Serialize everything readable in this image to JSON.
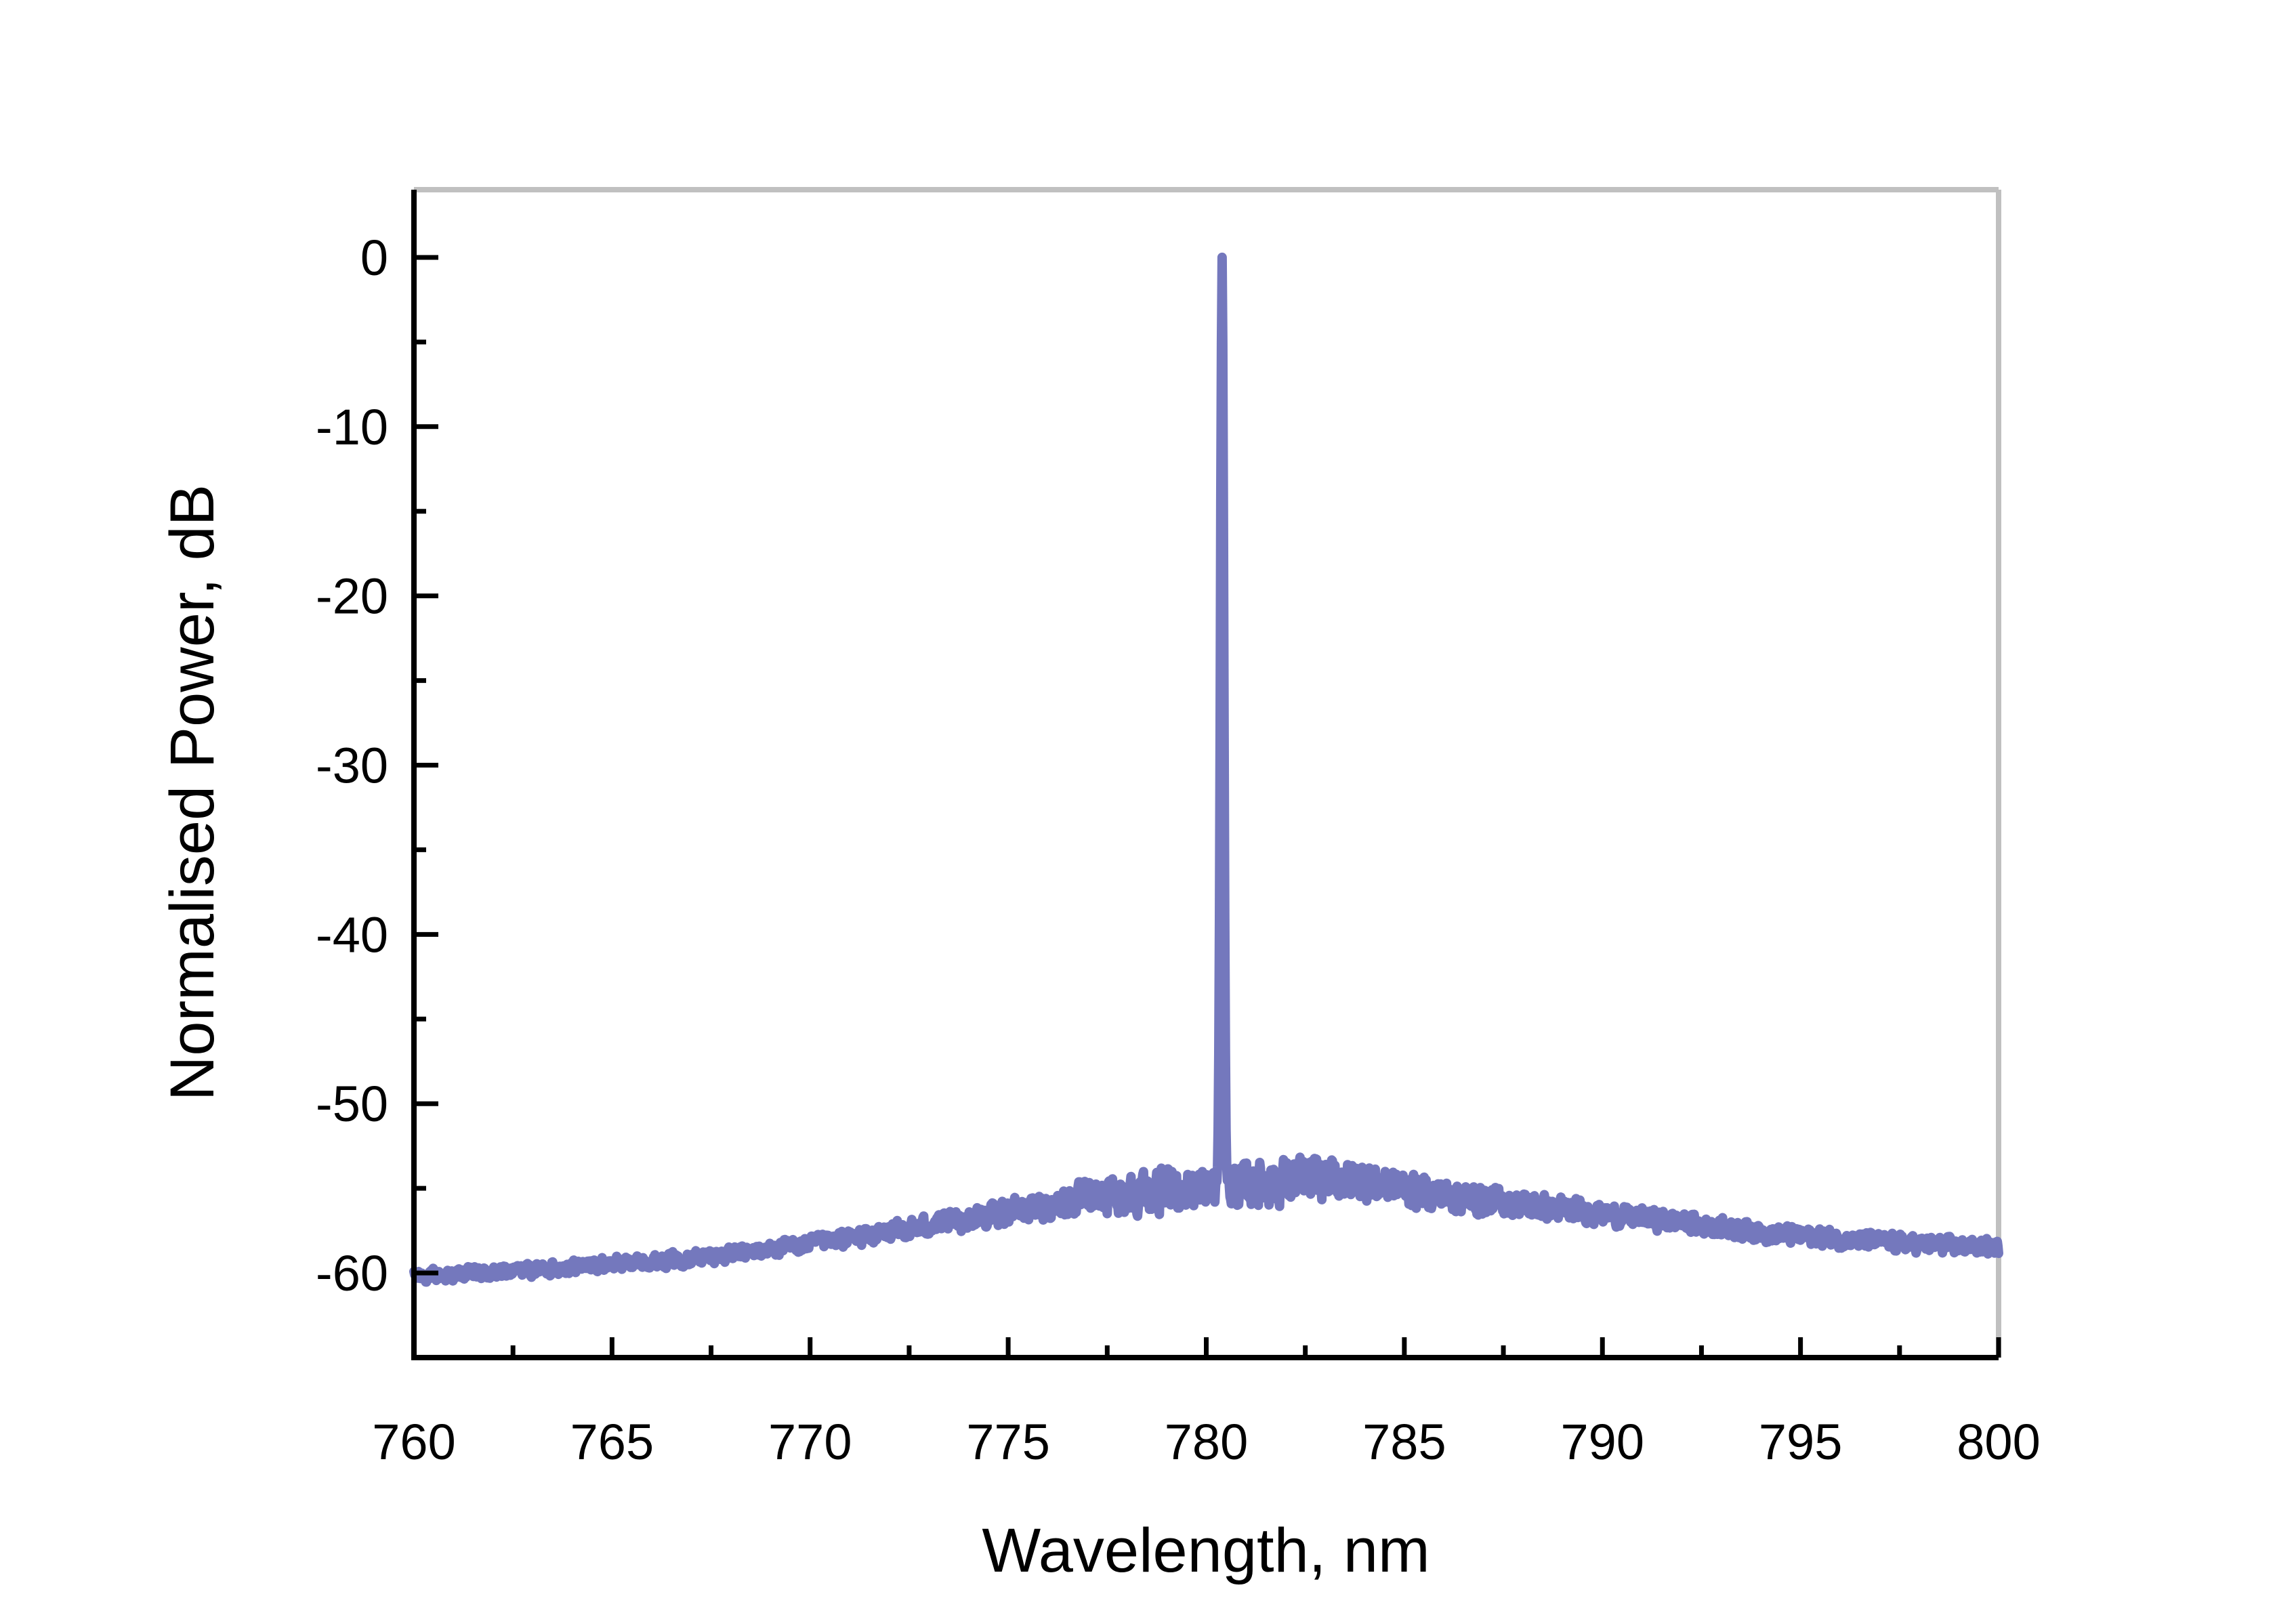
{
  "chart_data": {
    "type": "line",
    "title": "",
    "xlabel": "Wavelength, nm",
    "ylabel": "Normalised Power, dB",
    "xlim": [
      760,
      800
    ],
    "ylim": [
      -65,
      4
    ],
    "x_ticks": [
      760,
      765,
      770,
      775,
      780,
      785,
      790,
      795,
      800
    ],
    "x_tick_labels": [
      "760",
      "765",
      "770",
      "775",
      "780",
      "785",
      "790",
      "795",
      "800"
    ],
    "x_minor_step": 2.5,
    "y_ticks": [
      0,
      -10,
      -20,
      -30,
      -40,
      -50,
      -60
    ],
    "y_tick_labels": [
      "0",
      "-10",
      "-20",
      "-30",
      "-40",
      "-50",
      "-60"
    ],
    "y_minor_step": 5,
    "grid": false,
    "colors": {
      "series": "#7478bd",
      "axis": "#000000",
      "frame": "#c0c0c0"
    },
    "series": [
      {
        "name": "",
        "baseline": {
          "x": [
            760,
            762,
            764,
            766,
            768,
            770,
            772,
            774,
            776,
            778,
            780,
            780.3,
            781,
            782,
            783,
            784,
            785,
            786,
            788,
            790,
            792,
            794,
            796,
            798,
            800
          ],
          "y": [
            -60.2,
            -60.0,
            -59.6,
            -59.3,
            -58.9,
            -58.3,
            -57.6,
            -56.8,
            -56.0,
            -55.3,
            -55.0,
            -55.0,
            -54.8,
            -54.6,
            -54.4,
            -54.6,
            -55.0,
            -55.4,
            -56.0,
            -56.5,
            -57.0,
            -57.6,
            -58.0,
            -58.3,
            -58.5
          ]
        },
        "peak": {
          "x": 780.4,
          "y": 0
        },
        "noise_amplitude_db": {
          "x": [
            760,
            770,
            775,
            778,
            782,
            786,
            790,
            800
          ],
          "y": [
            0.5,
            0.6,
            0.9,
            1.5,
            1.8,
            1.2,
            0.8,
            0.6
          ]
        }
      }
    ]
  }
}
